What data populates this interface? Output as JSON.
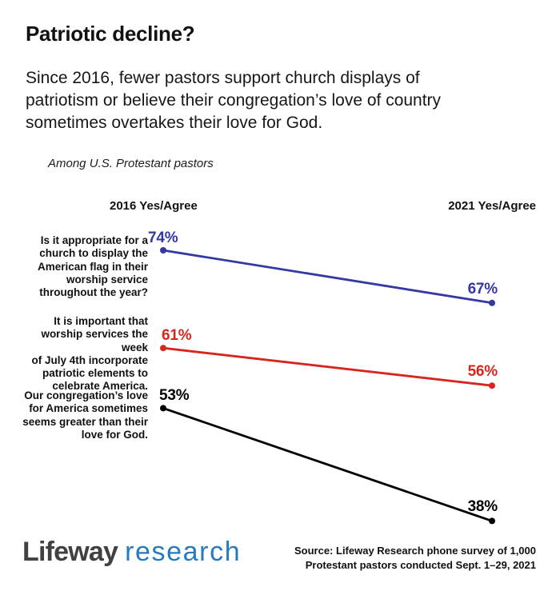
{
  "header": {
    "title": "Patriotic decline?",
    "subtitle_lines": [
      "Since 2016, fewer pastors support church displays of",
      "patriotism or believe their congregation’s love of country",
      "sometimes overtakes their love for God."
    ],
    "note": "Among U.S. Protestant pastors"
  },
  "chart_data": {
    "type": "line",
    "variant": "slope-graph",
    "title": "Patriotic decline?",
    "population": "Among U.S. Protestant pastors",
    "categories": [
      "2016",
      "2021"
    ],
    "x_labels": [
      "2016 Yes/Agree",
      "2021 Yes/Agree"
    ],
    "unit": "%",
    "ylim": [
      35,
      80
    ],
    "grid": false,
    "legend": "none",
    "series": [
      {
        "name": "Is it appropriate for a church to display the American flag in their worship service throughout the year?",
        "name_lines": [
          "Is it appropriate for a",
          "church to display the",
          "American flag in their",
          "worship service",
          "throughout the year?"
        ],
        "values": [
          74,
          67
        ],
        "value_labels": [
          "74%",
          "67%"
        ],
        "color": "#3438a2"
      },
      {
        "name": "It is important that worship services the week of July 4th incorporate patriotic elements to celebrate America.",
        "name_lines": [
          "It is important that",
          "worship services the week",
          "of July 4th incorporate",
          "patriotic elements to",
          "celebrate America."
        ],
        "values": [
          61,
          56
        ],
        "value_labels": [
          "61%",
          "56%"
        ],
        "color": "#d7261d"
      },
      {
        "name": "Our congregation’s love for America sometimes seems greater than their love for God.",
        "name_lines": [
          "Our congregation’s love",
          "for America sometimes",
          "seems greater than their",
          "love for God."
        ],
        "values": [
          53,
          38
        ],
        "value_labels": [
          "53%",
          "38%"
        ],
        "color": "#000000"
      }
    ]
  },
  "footer": {
    "logo": {
      "primary": "Lifeway",
      "secondary": "research",
      "primary_color": "#414042",
      "secondary_color": "#2779c0"
    },
    "source_lines": [
      "Source:  Lifeway Research phone survey of 1,000",
      "Protestant pastors conducted Sept. 1–29, 2021"
    ]
  }
}
